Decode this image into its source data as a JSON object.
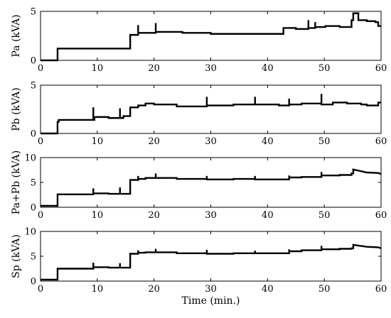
{
  "chart_data": [
    {
      "type": "line",
      "ylabel": "Pa (kVA)",
      "xlim": [
        0,
        60
      ],
      "ylim": [
        0,
        5
      ],
      "xticks": [
        "0",
        "10",
        "20",
        "30",
        "40",
        "50",
        "60"
      ],
      "yticks": [
        "0",
        "5"
      ],
      "series": [
        {
          "x": [
            0,
            3,
            3,
            15.8,
            15.8,
            17.2,
            17.2,
            17.2,
            20.3,
            20.3,
            20.3,
            25,
            25,
            30,
            30,
            42.8,
            42.8,
            45,
            45,
            47.2,
            47.2,
            47.2,
            48.4,
            48.4,
            48.4,
            50.2,
            50.2,
            52.7,
            52.7,
            54.8,
            54.8,
            55.1,
            55.1,
            56,
            56,
            57.5,
            57.5,
            59,
            59,
            59.5,
            59.5,
            60
          ],
          "y": [
            0,
            0,
            1.2,
            1.2,
            2.6,
            2.6,
            3.6,
            2.8,
            2.8,
            3.8,
            2.9,
            2.9,
            2.8,
            2.8,
            2.7,
            2.7,
            3.3,
            3.3,
            3.2,
            3.2,
            4.1,
            3.3,
            3.3,
            3.9,
            3.4,
            3.4,
            3.5,
            3.5,
            3.4,
            3.4,
            4.1,
            4.1,
            4.8,
            4.8,
            4.1,
            4.1,
            4.0,
            4.0,
            3.9,
            3.9,
            3.5,
            3.5
          ]
        }
      ]
    },
    {
      "type": "line",
      "ylabel": "Pb (kVA)",
      "xlim": [
        0,
        60
      ],
      "ylim": [
        0,
        5
      ],
      "xticks": [
        "0",
        "10",
        "20",
        "30",
        "40",
        "50",
        "60"
      ],
      "yticks": [
        "0",
        "5"
      ],
      "series": [
        {
          "x": [
            0,
            3,
            3,
            3.2,
            3.2,
            9.3,
            9.3,
            9.3,
            9.5,
            9.5,
            12,
            12,
            14,
            14,
            14,
            14.6,
            14.6,
            15.8,
            15.8,
            17.2,
            17.2,
            18.5,
            18.5,
            20,
            20,
            24,
            24,
            29.3,
            29.3,
            29.3,
            34,
            34,
            37.8,
            37.8,
            37.8,
            42,
            42,
            43.8,
            43.8,
            43.8,
            46,
            46,
            49.5,
            49.5,
            49.5,
            51.5,
            51.5,
            54,
            54,
            56.5,
            56.5,
            57.5,
            57.5,
            59.5,
            59.5,
            60
          ],
          "y": [
            0,
            0,
            1.2,
            1.2,
            1.4,
            1.4,
            2.7,
            1.4,
            1.4,
            1.7,
            1.7,
            1.6,
            1.6,
            2.6,
            1.6,
            1.6,
            1.8,
            1.8,
            2.7,
            2.7,
            2.9,
            2.9,
            3.1,
            3.1,
            3.0,
            3.0,
            2.8,
            2.8,
            3.8,
            2.9,
            2.9,
            3.0,
            3.0,
            3.8,
            3.0,
            3.0,
            2.9,
            2.9,
            3.6,
            3.0,
            3.0,
            3.1,
            3.1,
            4.1,
            3.0,
            3.0,
            3.2,
            3.2,
            3.1,
            3.1,
            3.0,
            3.0,
            2.9,
            2.9,
            3.2,
            3.2
          ]
        }
      ]
    },
    {
      "type": "line",
      "ylabel": "Pa+Pb (kVA)",
      "xlim": [
        0,
        60
      ],
      "ylim": [
        0,
        10
      ],
      "xticks": [
        "0",
        "10",
        "20",
        "30",
        "40",
        "50",
        "60"
      ],
      "yticks": [
        "0",
        "5",
        "10"
      ],
      "series": [
        {
          "x": [
            0,
            3,
            3,
            9.3,
            9.3,
            9.3,
            12,
            12,
            14,
            14,
            14,
            15.8,
            15.8,
            17.2,
            17.2,
            17.2,
            18.5,
            18.5,
            20.3,
            20.3,
            20.3,
            24,
            24,
            29.3,
            29.3,
            29.3,
            34,
            34,
            37.8,
            37.8,
            37.8,
            43.8,
            43.8,
            43.8,
            46,
            46,
            49.5,
            49.5,
            49.5,
            52.7,
            52.7,
            54.8,
            54.8,
            55.1,
            55.1,
            57.5,
            57.5,
            59.5,
            59.5,
            60
          ],
          "y": [
            0.3,
            0.3,
            2.6,
            2.6,
            3.8,
            2.8,
            2.8,
            2.7,
            2.7,
            4.0,
            2.7,
            2.7,
            5.5,
            5.5,
            6.3,
            5.7,
            5.7,
            5.9,
            5.9,
            6.8,
            5.9,
            5.9,
            5.7,
            5.7,
            6.3,
            5.6,
            5.6,
            5.7,
            5.7,
            6.3,
            5.6,
            5.6,
            6.4,
            6.0,
            6.0,
            6.1,
            6.1,
            7.1,
            6.4,
            6.4,
            6.5,
            6.5,
            6.8,
            6.8,
            7.6,
            7.0,
            7.0,
            6.9,
            6.9,
            6.7
          ]
        }
      ]
    },
    {
      "type": "line",
      "ylabel": "Sp (kVA)",
      "xlabel": "Time (min.)",
      "xlim": [
        0,
        60
      ],
      "ylim": [
        0,
        10
      ],
      "xticks": [
        "0",
        "10",
        "20",
        "30",
        "40",
        "50",
        "60"
      ],
      "yticks": [
        "0",
        "5",
        "10"
      ],
      "series": [
        {
          "x": [
            0,
            3,
            3,
            9.3,
            9.3,
            9.3,
            12,
            12,
            14,
            14,
            14,
            15.8,
            15.8,
            17.2,
            17.2,
            17.2,
            18.5,
            18.5,
            20.3,
            20.3,
            20.3,
            24,
            24,
            29.3,
            29.3,
            29.3,
            34,
            34,
            37.8,
            37.8,
            37.8,
            43.8,
            43.8,
            43.8,
            46,
            46,
            49.5,
            49.5,
            49.5,
            52.7,
            52.7,
            54.8,
            54.8,
            55.1,
            55.1,
            57.5,
            57.5,
            59.5,
            59.5,
            60
          ],
          "y": [
            0.3,
            0.3,
            2.5,
            2.5,
            3.7,
            2.8,
            2.8,
            2.7,
            2.7,
            3.6,
            2.7,
            2.7,
            5.5,
            5.5,
            6.2,
            5.7,
            5.7,
            5.8,
            5.8,
            6.5,
            5.8,
            5.8,
            5.6,
            5.6,
            6.3,
            5.5,
            5.5,
            5.6,
            5.6,
            6.1,
            5.6,
            5.6,
            6.4,
            6.0,
            6.0,
            6.2,
            6.2,
            7.1,
            6.4,
            6.4,
            6.5,
            6.5,
            6.6,
            6.6,
            7.3,
            6.9,
            6.9,
            6.8,
            6.8,
            6.6
          ]
        }
      ]
    }
  ]
}
